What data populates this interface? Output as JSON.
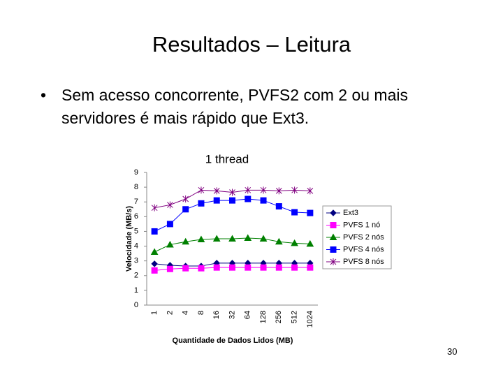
{
  "slide": {
    "title": "Resultados – Leitura",
    "bullet": "Sem acesso concorrente, PVFS2 com 2 ou mais servidores é mais rápido que Ext3.",
    "page_number": "30"
  },
  "chart_data": {
    "type": "line",
    "title": "1 thread",
    "x_label": "Quantidade de Dados Lidos (MB)",
    "y_label": "Velocidade (MB/s)",
    "categories": [
      "1",
      "2",
      "4",
      "8",
      "16",
      "32",
      "64",
      "128",
      "256",
      "512",
      "1024"
    ],
    "ylim": [
      0,
      9
    ],
    "yticks": [
      0,
      1,
      2,
      3,
      4,
      5,
      6,
      7,
      8,
      9
    ],
    "grid": false,
    "legend": "right",
    "series": [
      {
        "name": "Ext3",
        "color": "#000080",
        "marker": "diamond",
        "values": [
          2.8,
          2.7,
          2.65,
          2.65,
          2.85,
          2.85,
          2.85,
          2.85,
          2.85,
          2.85,
          2.85
        ]
      },
      {
        "name": "PVFS 1 nó",
        "color": "#ff00ff",
        "marker": "square",
        "values": [
          2.35,
          2.45,
          2.5,
          2.5,
          2.55,
          2.55,
          2.55,
          2.55,
          2.55,
          2.55,
          2.55
        ]
      },
      {
        "name": "PVFS 2 nós",
        "color": "#008000",
        "marker": "triangle",
        "values": [
          3.6,
          4.1,
          4.3,
          4.45,
          4.5,
          4.5,
          4.55,
          4.5,
          4.3,
          4.2,
          4.15
        ]
      },
      {
        "name": "PVFS 4 nós",
        "color": "#0000ff",
        "marker": "square",
        "values": [
          5.0,
          5.5,
          6.5,
          6.9,
          7.1,
          7.1,
          7.2,
          7.1,
          6.7,
          6.3,
          6.25
        ]
      },
      {
        "name": "PVFS 8 nós",
        "color": "#800080",
        "marker": "star",
        "values": [
          6.6,
          6.8,
          7.2,
          7.8,
          7.75,
          7.65,
          7.8,
          7.8,
          7.75,
          7.8,
          7.75
        ]
      }
    ]
  }
}
